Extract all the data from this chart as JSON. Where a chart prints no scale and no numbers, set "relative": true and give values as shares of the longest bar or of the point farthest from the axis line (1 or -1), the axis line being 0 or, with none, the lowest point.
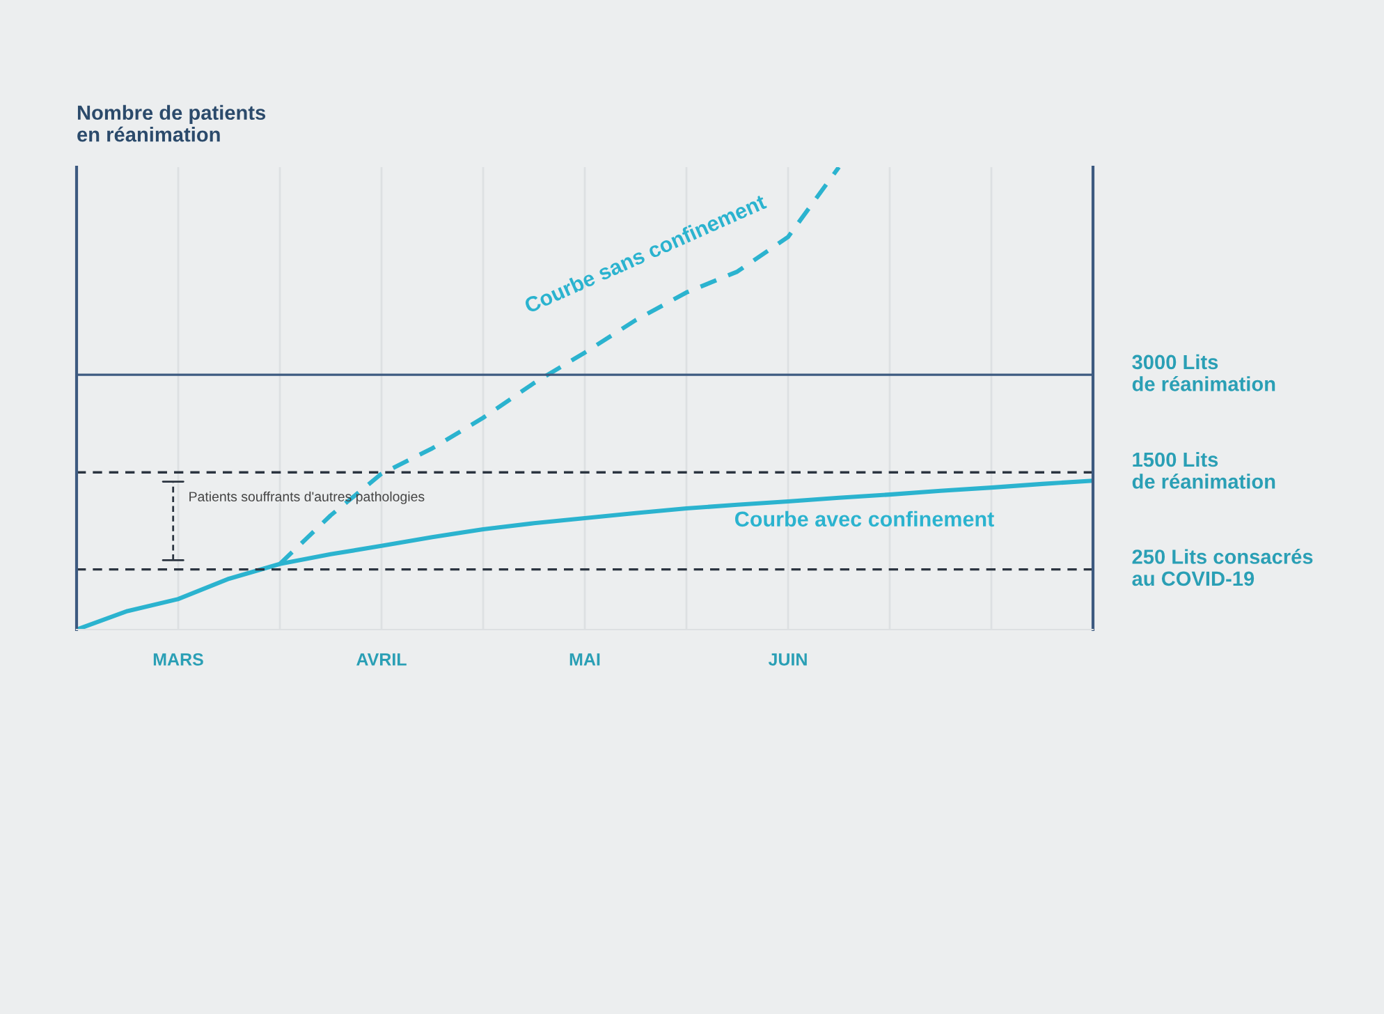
{
  "chart_data": {
    "type": "line",
    "relative": true,
    "ylabel": "Nombre de patients\nen réanimation",
    "categories": [
      null,
      null,
      "MARS",
      null,
      null,
      null,
      "AVRIL",
      null,
      null,
      null,
      "MAI",
      null,
      null,
      null,
      "JUIN",
      null,
      null,
      null,
      null,
      null,
      null
    ],
    "series": [
      {
        "name": "Courbe avec confinement",
        "color": "#2bb3cf",
        "line_style": "solid",
        "values": [
          0,
          0.04,
          0.066,
          0.11,
          0.142,
          0.163,
          0.181,
          0.2,
          0.217,
          0.23,
          0.241,
          0.252,
          0.262,
          0.27,
          0.277,
          0.285,
          0.292,
          0.3,
          0.307,
          0.315,
          0.322
        ]
      },
      {
        "name": "Courbe sans confinement",
        "color": "#2bb3cf",
        "line_style": "dashed",
        "values": [
          null,
          null,
          null,
          null,
          0.142,
          0.247,
          0.337,
          0.392,
          0.458,
          0.533,
          0.599,
          0.669,
          0.729,
          0.774,
          0.849,
          1.0,
          null,
          null,
          null,
          null,
          null
        ]
      }
    ],
    "ref_lines": [
      {
        "axis": "y",
        "value": 0.551,
        "label": "3000 Lits\nde réanimation",
        "color": "#3d5a80",
        "line_style": "solid"
      },
      {
        "axis": "y",
        "value": 0.34,
        "label": "1500 Lits\nde réanimation",
        "color": "#2b3440",
        "line_style": "dashed"
      },
      {
        "axis": "y",
        "value": 0.13,
        "label": "250 Lits consacrés\nau COVID-19",
        "color": "#2b3440",
        "line_style": "dashed"
      }
    ],
    "annotations": [
      "Patients souffrants d'autres pathologies"
    ],
    "grid": "x",
    "legend": false,
    "marker": "none"
  }
}
